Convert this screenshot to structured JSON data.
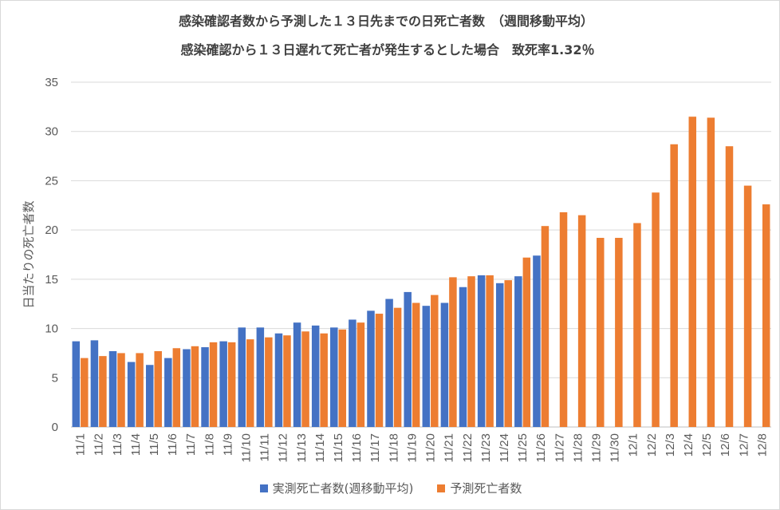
{
  "chart_data": {
    "type": "bar",
    "title_line1": "感染確認者数から予測した１３日先までの日死亡者数　（週間移動平均）",
    "title_line2": "感染確認から１３日遅れて死亡者が発生するとした場合　致死率1.32％",
    "ylabel": "日当たりの死亡者数",
    "xlabel": "",
    "ylim": [
      0,
      35
    ],
    "yticks": [
      "0",
      "5",
      "10",
      "15",
      "20",
      "25",
      "30",
      "35"
    ],
    "categories": [
      "11/1",
      "11/2",
      "11/3",
      "11/4",
      "11/5",
      "11/6",
      "11/7",
      "11/8",
      "11/9",
      "11/10",
      "11/11",
      "11/12",
      "11/13",
      "11/14",
      "11/15",
      "11/16",
      "11/17",
      "11/18",
      "11/19",
      "11/20",
      "11/21",
      "11/22",
      "11/23",
      "11/24",
      "11/25",
      "11/26",
      "11/27",
      "11/28",
      "11/29",
      "11/30",
      "12/1",
      "12/2",
      "12/3",
      "12/4",
      "12/5",
      "12/6",
      "12/7",
      "12/8"
    ],
    "series": [
      {
        "name": "実測死亡者数(週移動平均)",
        "color": "#4472c4",
        "values": [
          8.7,
          8.8,
          7.7,
          6.6,
          6.3,
          7.0,
          7.9,
          8.1,
          8.7,
          10.1,
          10.1,
          9.5,
          10.6,
          10.3,
          10.1,
          10.9,
          11.8,
          13.0,
          13.7,
          12.3,
          12.6,
          14.2,
          15.4,
          14.6,
          15.3,
          17.4,
          null,
          null,
          null,
          null,
          null,
          null,
          null,
          null,
          null,
          null,
          null,
          null
        ]
      },
      {
        "name": "予測死亡者数",
        "color": "#ed7d31",
        "values": [
          7.0,
          7.2,
          7.5,
          7.5,
          7.7,
          8.0,
          8.2,
          8.6,
          8.6,
          8.9,
          9.1,
          9.3,
          9.7,
          9.5,
          9.9,
          10.6,
          11.5,
          12.1,
          12.6,
          13.4,
          15.2,
          15.3,
          15.4,
          14.9,
          17.2,
          20.4,
          21.8,
          21.5,
          19.2,
          19.2,
          20.7,
          23.8,
          28.7,
          31.5,
          31.4,
          28.5,
          24.5,
          22.6
        ]
      }
    ],
    "legend": "bottom",
    "grid": true
  }
}
